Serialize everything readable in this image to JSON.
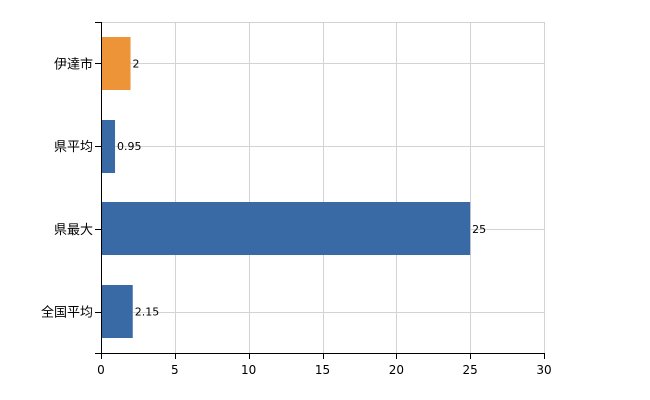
{
  "chart_data": {
    "type": "bar",
    "orientation": "horizontal",
    "categories": [
      "伊達市",
      "県平均",
      "県最大",
      "全国平均"
    ],
    "values": [
      2,
      0.95,
      25,
      2.15
    ],
    "value_labels": [
      "2",
      "0.95",
      "25",
      "2.15"
    ],
    "bar_colors": [
      "#ee9438",
      "#3a6aa6",
      "#3a6aa6",
      "#3a6aa6"
    ],
    "xlim": [
      0,
      30
    ],
    "xticks": [
      0,
      5,
      10,
      15,
      20,
      25,
      30
    ],
    "xtick_labels": [
      "0",
      "5",
      "10",
      "15",
      "20",
      "25",
      "30"
    ],
    "grid": true,
    "title": "",
    "xlabel": "",
    "ylabel": ""
  }
}
